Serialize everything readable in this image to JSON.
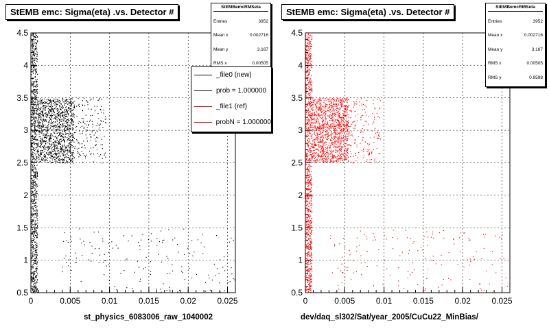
{
  "colors": {
    "file0": "#000000",
    "file1": "#ff0000"
  },
  "panels": [
    {
      "title": "StEMB emc: Sigma(eta) .vs. Detector #",
      "xtitle": "st_physics_6083006_raw_1040002",
      "stats": {
        "title": "StEMBemcRMSeta",
        "rows": [
          {
            "label": "Entries",
            "value": "3952"
          },
          {
            "label": "Mean x",
            "value": "0.002716"
          },
          {
            "label": "Mean y",
            "value": "3.167"
          },
          {
            "label": "RMS x",
            "value": "0.00505"
          }
        ]
      },
      "legend": {
        "entries": [
          {
            "label": "_file0 (new)",
            "color": "#000000"
          },
          {
            "label": "prob = 1.000000",
            "color": "#000000"
          },
          {
            "label": "_file1 (ref)",
            "color": "#ff0000"
          },
          {
            "label": "probN = 1.000000",
            "color": "#ff0000"
          }
        ]
      }
    },
    {
      "title": "StEMB emc: Sigma(eta) .vs. Detector #",
      "xtitle": "dev/daq_sl302/Sat/year_2005/CuCu22_MinBias/",
      "stats": {
        "title": "StEMBemcRMSeta",
        "rows": [
          {
            "label": "Entries",
            "value": "3952"
          },
          {
            "label": "Mean x",
            "value": "0.002716"
          },
          {
            "label": "Mean y",
            "value": "3.167"
          },
          {
            "label": "RMS x",
            "value": "0.00505"
          },
          {
            "label": "RMS y",
            "value": "0.9598"
          }
        ]
      }
    }
  ],
  "chart_data": [
    {
      "type": "scatter",
      "series": [
        {
          "name": "_file0 (new)",
          "color": "#000000"
        }
      ],
      "xlim": [
        0,
        0.026
      ],
      "ylim": [
        0.5,
        4.5
      ],
      "xticks": [
        "0",
        "0.005",
        "0.01",
        "0.015",
        "0.02",
        "0.025"
      ],
      "yticks": [
        "0.5",
        "1",
        "1.5",
        "2",
        "2.5",
        "3",
        "3.5",
        "4",
        "4.5"
      ],
      "grid": true,
      "clusters": [
        {
          "x": [
            0.0,
            0.0008
          ],
          "y": [
            0.5,
            4.5
          ],
          "density": "very high"
        },
        {
          "x": [
            0.0008,
            0.0055
          ],
          "y": [
            2.5,
            3.5
          ],
          "density": "high"
        },
        {
          "x": [
            0.0055,
            0.0095
          ],
          "y": [
            2.5,
            3.5
          ],
          "density": "low"
        },
        {
          "x": [
            0.003,
            0.026
          ],
          "y": [
            0.5,
            1.5
          ],
          "density": "low"
        }
      ]
    },
    {
      "type": "scatter",
      "series": [
        {
          "name": "_file1 (ref)",
          "color": "#ff0000"
        }
      ],
      "xlim": [
        0,
        0.026
      ],
      "ylim": [
        0.5,
        4.5
      ],
      "xticks": [
        "0",
        "0.005",
        "0.01",
        "0.015",
        "0.02",
        "0.025"
      ],
      "yticks": [
        "0.5",
        "1",
        "1.5",
        "2",
        "2.5",
        "3",
        "3.5",
        "4",
        "4.5"
      ],
      "grid": true,
      "clusters": [
        {
          "x": [
            0.0,
            0.0008
          ],
          "y": [
            0.5,
            4.5
          ],
          "density": "very high"
        },
        {
          "x": [
            0.0008,
            0.0055
          ],
          "y": [
            2.5,
            3.5
          ],
          "density": "high"
        },
        {
          "x": [
            0.0055,
            0.0095
          ],
          "y": [
            2.5,
            3.5
          ],
          "density": "low"
        },
        {
          "x": [
            0.003,
            0.026
          ],
          "y": [
            0.5,
            1.5
          ],
          "density": "low"
        }
      ]
    }
  ]
}
